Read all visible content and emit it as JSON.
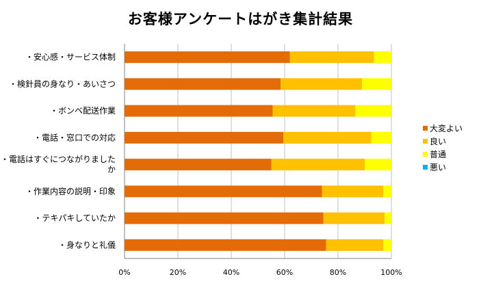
{
  "chart_data": {
    "type": "bar",
    "orientation": "horizontal",
    "stacked": "percent",
    "title": "お客様アンケートはがき集計結果",
    "categories": [
      "・安心感・サービス体制",
      "・検針員の身なり・あいさつ",
      "・ボンベ配送作業",
      "・電話・窓口での対応",
      "・電話はすぐにつながりました か",
      "・作業内容の説明・印象",
      "・テキパキしていたか",
      "・身なりと礼儀"
    ],
    "category_lines": [
      [
        "・安心感・サービス体制"
      ],
      [
        "・検針員の身なり・あいさつ"
      ],
      [
        "・ボンベ配送作業"
      ],
      [
        "・電話・窓口での対応"
      ],
      [
        "・電話はすぐにつながりました",
        "か"
      ],
      [
        "・作業内容の説明・印象"
      ],
      [
        "・テキパキしていたか"
      ],
      [
        "・身なりと礼儀"
      ]
    ],
    "series": [
      {
        "name": "大変よい",
        "color": "#E36C09",
        "values": [
          62,
          58.5,
          55.5,
          59.5,
          55,
          74,
          74.5,
          75.5
        ]
      },
      {
        "name": "良い",
        "color": "#FFC000",
        "values": [
          31.5,
          30.5,
          31,
          33,
          35,
          23,
          23,
          21.5
        ]
      },
      {
        "name": "普通",
        "color": "#FFFF00",
        "values": [
          6.5,
          11,
          13.5,
          7.5,
          10,
          3,
          2.5,
          3
        ]
      },
      {
        "name": "悪い",
        "color": "#00B0F0",
        "values": [
          0,
          0,
          0,
          0,
          0,
          0,
          0,
          0
        ]
      }
    ],
    "xlim": [
      0,
      100
    ],
    "xticks": [
      "0%",
      "20%",
      "40%",
      "60%",
      "80%",
      "100%"
    ],
    "grid": true,
    "legend_position": "right"
  }
}
